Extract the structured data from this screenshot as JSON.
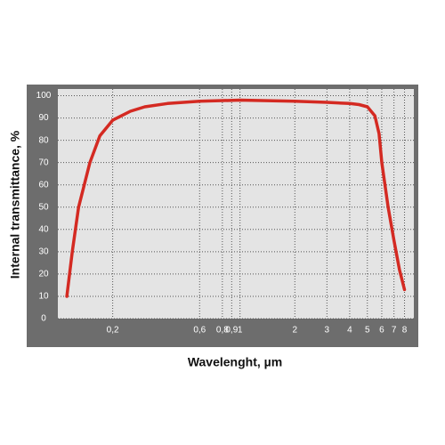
{
  "chart_data": {
    "type": "line",
    "x_label": "Wavelenght, µm",
    "y_label": "Internal transmittance, %",
    "x": [
      0.112,
      0.12,
      0.13,
      0.15,
      0.17,
      0.2,
      0.25,
      0.3,
      0.4,
      0.6,
      1,
      2,
      3,
      4,
      4.5,
      5,
      5.5,
      5.8,
      6,
      6.5,
      7,
      7.5,
      8
    ],
    "series": [
      {
        "color": "#d42a22",
        "values": [
          10,
          30,
          50,
          70,
          82,
          89,
          93,
          95,
          96.5,
          97.5,
          98,
          97.5,
          97,
          96.5,
          96,
          95,
          91,
          83,
          70,
          50,
          35,
          22,
          13
        ]
      }
    ],
    "x_log": true,
    "xlim": [
      0.1,
      9
    ],
    "xticks": [
      {
        "value": 0.2,
        "label": "0,2"
      },
      {
        "value": 0.6,
        "label": "0,6"
      },
      {
        "value": 0.8,
        "label": "0,8"
      },
      {
        "value": 0.9,
        "label": "0,9"
      },
      1,
      2,
      3,
      4,
      5,
      6,
      7,
      8
    ],
    "ylim": [
      0,
      103
    ],
    "yticks": [
      0,
      10,
      20,
      30,
      40,
      50,
      60,
      70,
      80,
      90,
      100
    ],
    "grid": true
  }
}
